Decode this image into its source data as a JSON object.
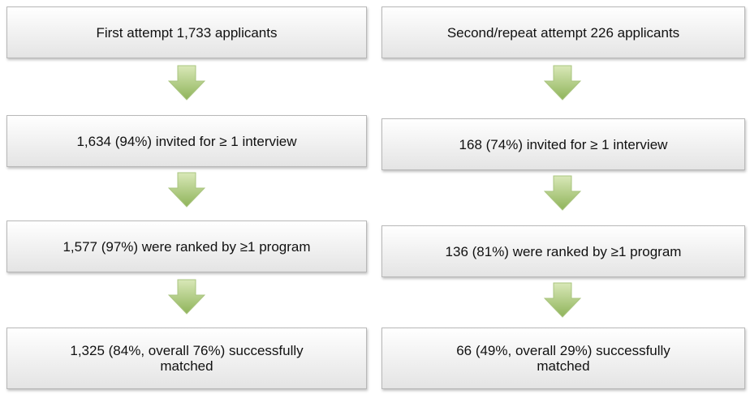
{
  "columns": [
    {
      "boxes": [
        {
          "lines": [
            "First attempt 1,733 applicants"
          ]
        },
        {
          "lines": [
            "1,634 (94%) invited for ≥ 1 interview"
          ]
        },
        {
          "lines": [
            "1,577 (97%) were ranked by ≥1 program"
          ]
        },
        {
          "lines": [
            "1,325 (84%, overall 76%) successfully",
            "matched"
          ]
        }
      ]
    },
    {
      "boxes": [
        {
          "lines": [
            "Second/repeat attempt 226 applicants"
          ]
        },
        {
          "lines": [
            "168 (74%) invited for ≥ 1 interview"
          ]
        },
        {
          "lines": [
            "136 (81%) were ranked by ≥1 program"
          ]
        },
        {
          "lines": [
            "66 (49%, overall 29%) successfully",
            "matched"
          ]
        }
      ]
    }
  ]
}
